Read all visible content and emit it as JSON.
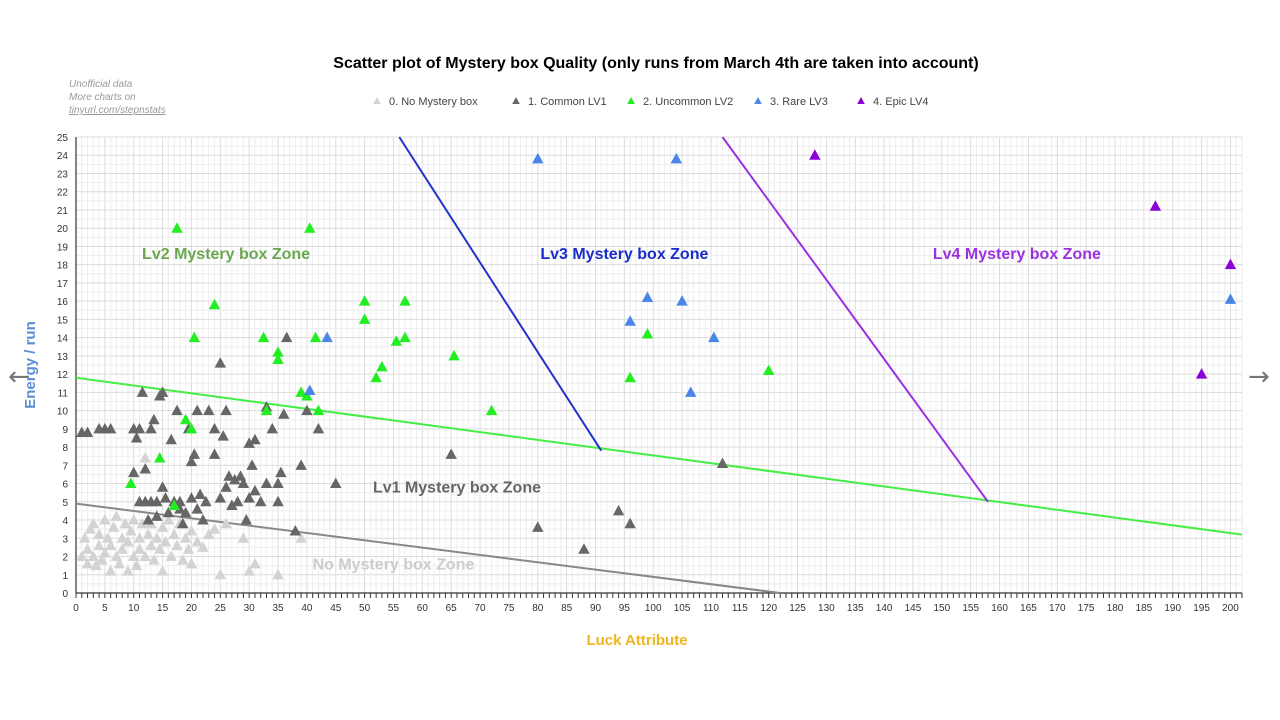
{
  "chart_data": {
    "type": "scatter",
    "title": "Scatter plot of Mystery box Quality (only runs from March 4th are taken into account)",
    "xlabel": "Luck Attribute",
    "ylabel": "Energy / run",
    "xlim": [
      0,
      202
    ],
    "ylim": [
      0,
      25
    ],
    "x_ticks": [
      0,
      5,
      10,
      15,
      20,
      25,
      30,
      35,
      40,
      45,
      50,
      55,
      60,
      65,
      70,
      75,
      80,
      85,
      90,
      95,
      100,
      105,
      110,
      115,
      120,
      125,
      130,
      135,
      140,
      145,
      150,
      155,
      160,
      165,
      170,
      175,
      180,
      185,
      190,
      195,
      200
    ],
    "y_ticks": [
      0,
      1,
      2,
      3,
      4,
      5,
      6,
      7,
      8,
      9,
      10,
      11,
      12,
      13,
      14,
      15,
      16,
      17,
      18,
      19,
      20,
      21,
      22,
      23,
      24,
      25
    ],
    "grid": true,
    "legend_position": "top",
    "note": [
      "Unofficial data",
      "More charts on",
      "tinyurl.com/stepnstats"
    ],
    "series": [
      {
        "name": "0. No Mystery box",
        "color": "#d3d3d3",
        "points": [
          [
            1,
            2
          ],
          [
            1.5,
            3
          ],
          [
            2,
            1.6
          ],
          [
            2,
            2.4
          ],
          [
            2.5,
            3.5
          ],
          [
            3,
            2
          ],
          [
            3,
            3.8
          ],
          [
            3.5,
            1.5
          ],
          [
            4,
            2.6
          ],
          [
            4,
            3.2
          ],
          [
            4.5,
            1.8
          ],
          [
            5,
            2.2
          ],
          [
            5,
            4
          ],
          [
            5.5,
            3
          ],
          [
            6,
            1.2
          ],
          [
            6,
            2.6
          ],
          [
            6.5,
            3.6
          ],
          [
            7,
            2
          ],
          [
            7,
            4.2
          ],
          [
            7.5,
            1.6
          ],
          [
            8,
            3
          ],
          [
            8,
            2.4
          ],
          [
            8.5,
            3.8
          ],
          [
            9,
            1.2
          ],
          [
            9,
            2.8
          ],
          [
            9.5,
            3.4
          ],
          [
            10,
            2
          ],
          [
            10,
            4
          ],
          [
            10.5,
            1.5
          ],
          [
            11,
            3
          ],
          [
            11,
            2.4
          ],
          [
            11.5,
            3.8
          ],
          [
            12,
            2
          ],
          [
            12,
            7.4
          ],
          [
            12.5,
            3.2
          ],
          [
            13,
            2.6
          ],
          [
            13,
            3.8
          ],
          [
            13.5,
            1.8
          ],
          [
            14,
            3
          ],
          [
            14.5,
            2.4
          ],
          [
            15,
            3.6
          ],
          [
            15,
            1.2
          ],
          [
            15.5,
            2.8
          ],
          [
            16,
            4
          ],
          [
            16.5,
            2
          ],
          [
            17,
            3.2
          ],
          [
            17.5,
            2.6
          ],
          [
            18,
            3.8
          ],
          [
            18.5,
            1.8
          ],
          [
            19,
            3
          ],
          [
            19.5,
            2.4
          ],
          [
            20,
            3.4
          ],
          [
            20,
            1.6
          ],
          [
            21,
            2.8
          ],
          [
            22,
            2.5
          ],
          [
            23,
            3.2
          ],
          [
            24,
            3.5
          ],
          [
            25,
            1
          ],
          [
            26,
            3.8
          ],
          [
            29,
            3
          ],
          [
            30,
            1.2
          ],
          [
            31,
            1.6
          ],
          [
            35,
            1
          ],
          [
            39,
            3
          ]
        ]
      },
      {
        "name": "1. Common LV1",
        "color": "#666666",
        "points": [
          [
            1,
            8.8
          ],
          [
            2,
            8.8
          ],
          [
            4,
            9
          ],
          [
            5,
            9
          ],
          [
            6,
            9
          ],
          [
            10,
            9
          ],
          [
            10,
            6.6
          ],
          [
            10.5,
            8.5
          ],
          [
            11,
            5
          ],
          [
            11,
            9
          ],
          [
            11.5,
            11
          ],
          [
            12,
            6.8
          ],
          [
            12,
            5
          ],
          [
            12.5,
            4
          ],
          [
            13,
            9
          ],
          [
            13,
            5
          ],
          [
            13.5,
            9.5
          ],
          [
            14,
            4.2
          ],
          [
            14,
            5
          ],
          [
            14.5,
            10.8
          ],
          [
            15,
            11
          ],
          [
            15,
            5.8
          ],
          [
            15.5,
            5.2
          ],
          [
            16,
            4.4
          ],
          [
            16.5,
            8.4
          ],
          [
            17,
            5
          ],
          [
            17.5,
            10
          ],
          [
            18,
            4.6
          ],
          [
            18,
            5
          ],
          [
            18.5,
            3.8
          ],
          [
            19,
            4.4
          ],
          [
            19.5,
            9
          ],
          [
            20,
            5.2
          ],
          [
            20,
            7.2
          ],
          [
            20.5,
            7.6
          ],
          [
            21,
            4.6
          ],
          [
            21,
            10
          ],
          [
            21.5,
            5.4
          ],
          [
            22,
            4
          ],
          [
            22.5,
            5
          ],
          [
            23,
            10
          ],
          [
            24,
            7.6
          ],
          [
            24,
            9
          ],
          [
            25,
            12.6
          ],
          [
            25,
            5.2
          ],
          [
            25.5,
            8.6
          ],
          [
            26,
            10
          ],
          [
            26,
            5.8
          ],
          [
            26.5,
            6.4
          ],
          [
            27,
            4.8
          ],
          [
            27.5,
            6.2
          ],
          [
            28,
            5
          ],
          [
            28.5,
            6.4
          ],
          [
            29,
            6
          ],
          [
            29.5,
            4
          ],
          [
            30,
            5.2
          ],
          [
            30,
            8.2
          ],
          [
            30.5,
            7
          ],
          [
            31,
            5.6
          ],
          [
            31,
            8.4
          ],
          [
            32,
            5
          ],
          [
            33,
            10.2
          ],
          [
            33,
            6
          ],
          [
            34,
            9
          ],
          [
            35,
            5
          ],
          [
            35,
            6
          ],
          [
            35.5,
            6.6
          ],
          [
            36,
            9.8
          ],
          [
            36.5,
            14
          ],
          [
            38,
            3.4
          ],
          [
            39,
            7
          ],
          [
            40,
            10
          ],
          [
            42,
            9
          ],
          [
            45,
            6
          ],
          [
            65,
            7.6
          ],
          [
            80,
            3.6
          ],
          [
            88,
            2.4
          ],
          [
            94,
            4.5
          ],
          [
            96,
            3.8
          ],
          [
            112,
            7.1
          ]
        ]
      },
      {
        "name": "2. Uncommon LV2",
        "color": "#22ee22",
        "points": [
          [
            9.5,
            6
          ],
          [
            14.5,
            7.4
          ],
          [
            17,
            4.8
          ],
          [
            17.5,
            20
          ],
          [
            19,
            9.5
          ],
          [
            20,
            9
          ],
          [
            20.5,
            14
          ],
          [
            24,
            15.8
          ],
          [
            32.5,
            14
          ],
          [
            33,
            10
          ],
          [
            35,
            12.8
          ],
          [
            35,
            13.2
          ],
          [
            39,
            11
          ],
          [
            40,
            10.8
          ],
          [
            40.5,
            20
          ],
          [
            41.5,
            14
          ],
          [
            42,
            10
          ],
          [
            50,
            16
          ],
          [
            50,
            15
          ],
          [
            52,
            11.8
          ],
          [
            53,
            12.4
          ],
          [
            55.5,
            13.8
          ],
          [
            57,
            14
          ],
          [
            57,
            16
          ],
          [
            65.5,
            13
          ],
          [
            72,
            10
          ],
          [
            96,
            11.8
          ],
          [
            99,
            14.2
          ],
          [
            120,
            12.2
          ]
        ]
      },
      {
        "name": "3. Rare LV3",
        "color": "#4a86e8",
        "points": [
          [
            40.5,
            11.1
          ],
          [
            43.5,
            14
          ],
          [
            80,
            23.8
          ],
          [
            96,
            14.9
          ],
          [
            99,
            16.2
          ],
          [
            104,
            23.8
          ],
          [
            105,
            16
          ],
          [
            106.5,
            11
          ],
          [
            110.5,
            14
          ],
          [
            200,
            16.1
          ]
        ]
      },
      {
        "name": "4. Epic LV4",
        "color": "#8a00d6",
        "points": [
          [
            128,
            24
          ],
          [
            187,
            21.2
          ],
          [
            195,
            12
          ],
          [
            200,
            18
          ]
        ]
      }
    ],
    "lines": [
      {
        "color": "#888888",
        "points": [
          [
            0,
            4.9
          ],
          [
            122,
            0
          ]
        ]
      },
      {
        "color": "#44ee44",
        "points": [
          [
            0,
            11.8
          ],
          [
            202,
            3.2
          ]
        ]
      },
      {
        "color": "#2233cc",
        "points": [
          [
            56,
            25
          ],
          [
            91,
            7.8
          ]
        ]
      },
      {
        "color": "#9933dd",
        "points": [
          [
            112,
            25
          ],
          [
            158,
            5
          ]
        ]
      }
    ],
    "zones": [
      {
        "label": "Lv2 Mystery box Zone",
        "color": "#6aa84f",
        "x": 26,
        "y": 18.3
      },
      {
        "label": "Lv3 Mystery box Zone",
        "color": "#1a2ccc",
        "x": 95,
        "y": 18.3
      },
      {
        "label": "Lv4 Mystery box Zone",
        "color": "#9b30e0",
        "x": 163,
        "y": 18.3
      },
      {
        "label": "Lv1 Mystery box Zone",
        "color": "#666666",
        "x": 66,
        "y": 5.5
      },
      {
        "label": "No Mystery box Zone",
        "color": "#cccccc",
        "x": 55,
        "y": 1.3
      }
    ]
  },
  "nav": {
    "prev_icon": "←",
    "next_icon": "→"
  }
}
